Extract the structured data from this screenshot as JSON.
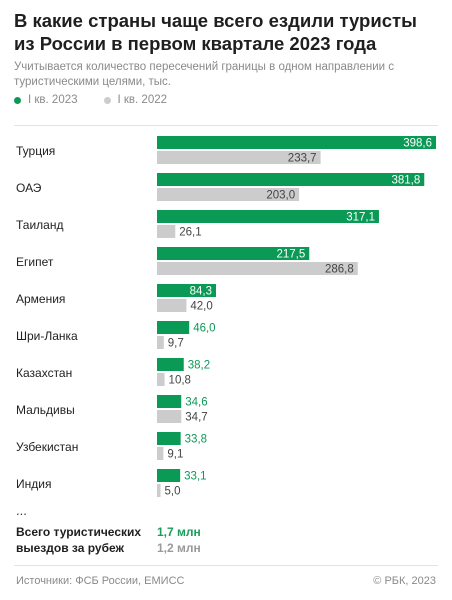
{
  "title": "В какие страны чаще всего ездили туристы из России в первом квартале 2023 года",
  "subtitle": "Учитывается количество пересечений границы в одном направлении с туристическими целями, тыс.",
  "legend": {
    "current": "I кв. 2023",
    "previous": "I кв. 2022"
  },
  "colors": {
    "current": "#0b9a56",
    "previous": "#cccccc"
  },
  "chart_data": {
    "type": "bar",
    "orientation": "horizontal",
    "categories": [
      "Турция",
      "ОАЭ",
      "Таиланд",
      "Египет",
      "Армения",
      "Шри-Ланка",
      "Казахстан",
      "Мальдивы",
      "Узбекистан",
      "Индия"
    ],
    "series": [
      {
        "name": "I кв. 2023",
        "values": [
          398.6,
          381.8,
          317.1,
          217.5,
          84.3,
          46.0,
          38.2,
          34.6,
          33.8,
          33.1
        ],
        "labels": [
          "398,6",
          "381,8",
          "317,1",
          "217,5",
          "84,3",
          "46,0",
          "38,2",
          "34,6",
          "33,8",
          "33,1"
        ]
      },
      {
        "name": "I кв. 2022",
        "values": [
          233.7,
          203.0,
          26.1,
          286.8,
          42.0,
          9.7,
          10.8,
          34.7,
          9.1,
          5.0
        ],
        "labels": [
          "233,7",
          "203,0",
          "26,1",
          "286,8",
          "42,0",
          "9,7",
          "10,8",
          "34,7",
          "9,1",
          "5,0"
        ]
      }
    ],
    "xlim": [
      0,
      400
    ]
  },
  "ellipsis": "...",
  "totals": {
    "label": "Всего туристических выездов за рубеж",
    "current": "1,7 млн",
    "previous": "1,2 млн"
  },
  "footer": {
    "source": "Источники: ФСБ России, ЕМИСС",
    "copyright": "© РБК, 2023"
  }
}
